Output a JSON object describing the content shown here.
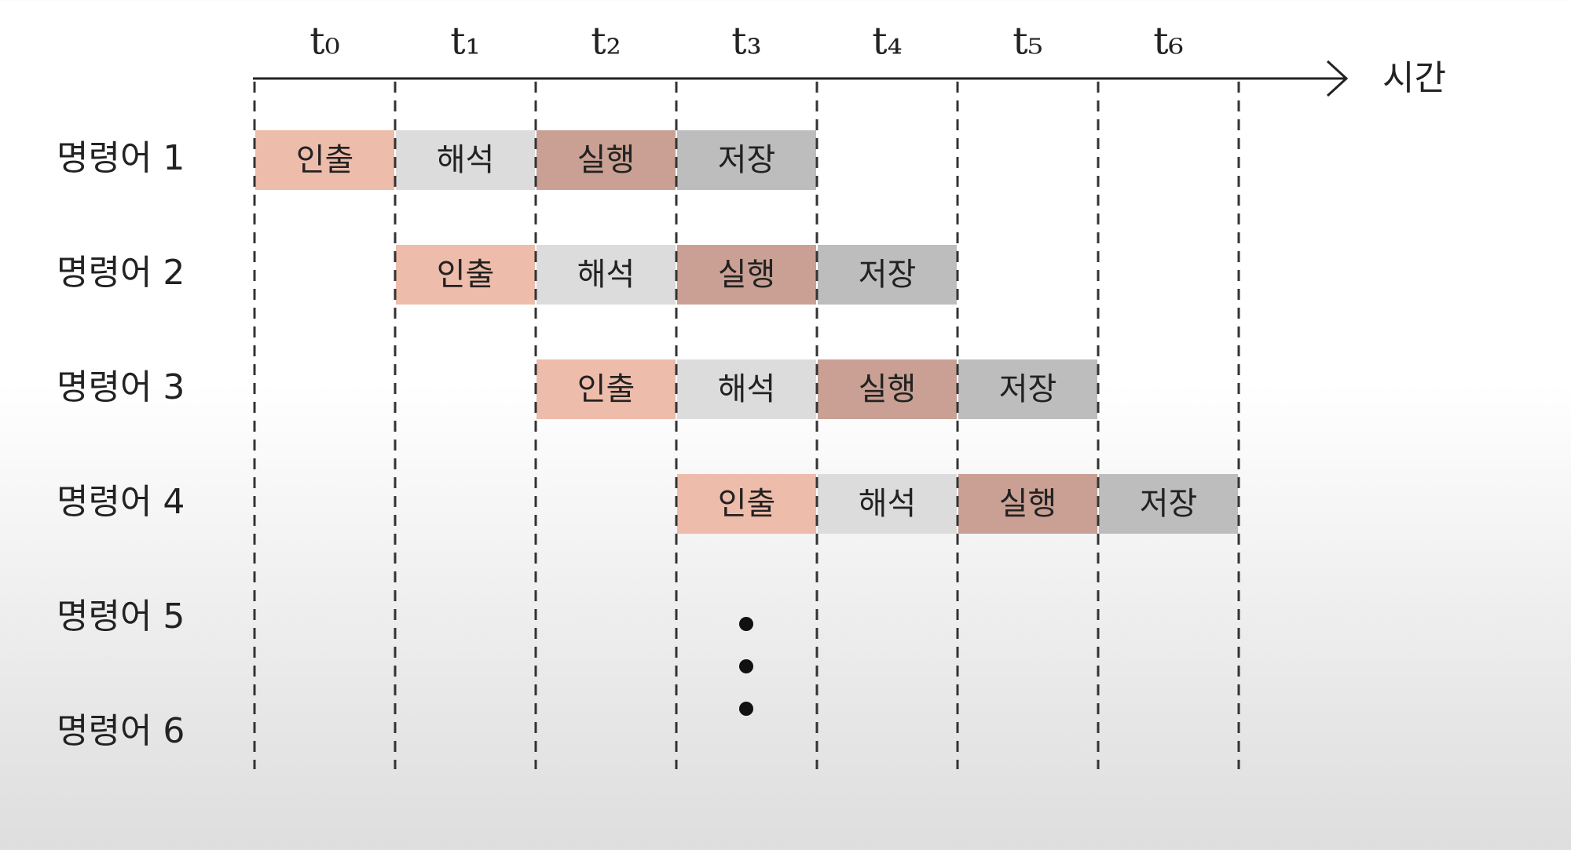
{
  "time_labels": [
    "t₀",
    "t₁",
    "t₂",
    "t₃",
    "t₄",
    "t₅",
    "t₆"
  ],
  "axis_label": "시간",
  "rows": [
    {
      "label": "명령어 1",
      "cells": [
        "인출",
        "해석",
        "실행",
        "저장",
        null,
        null,
        null
      ]
    },
    {
      "label": "명령어 2",
      "cells": [
        null,
        "인출",
        "해석",
        "실행",
        "저장",
        null,
        null
      ]
    },
    {
      "label": "명령어 3",
      "cells": [
        null,
        null,
        "인출",
        "해석",
        "실행",
        "저장",
        null
      ]
    },
    {
      "label": "명령어 4",
      "cells": [
        null,
        null,
        null,
        "인출",
        "해석",
        "실행",
        "저장"
      ]
    },
    {
      "label": "명령어 5",
      "cells": [
        null,
        null,
        null,
        null,
        null,
        null,
        null
      ]
    },
    {
      "label": "명령어 6",
      "cells": [
        null,
        null,
        null,
        null,
        null,
        null,
        null
      ]
    }
  ]
}
